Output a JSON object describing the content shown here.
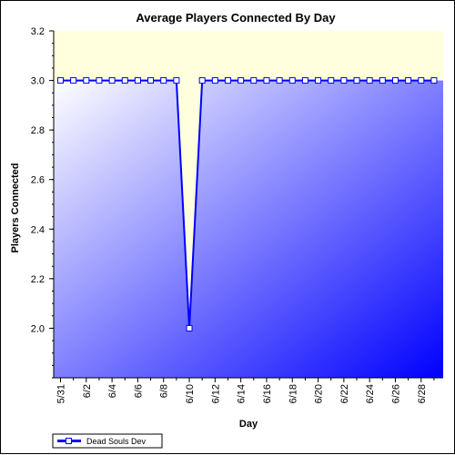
{
  "chart_data": {
    "type": "line",
    "title": "Average Players Connected By Day",
    "xlabel": "Day",
    "ylabel": "Players Connected",
    "ylim": [
      1.8,
      3.2
    ],
    "y_ticks": [
      "2.0",
      "2.2",
      "2.4",
      "2.6",
      "2.8",
      "3.0",
      "3.2"
    ],
    "x_tick_labels": [
      "5/31",
      "6/2",
      "6/4",
      "6/6",
      "6/8",
      "6/10",
      "6/12",
      "6/14",
      "6/16",
      "6/18",
      "6/20",
      "6/22",
      "6/24",
      "6/26",
      "6/28"
    ],
    "categories": [
      "5/31",
      "6/1",
      "6/2",
      "6/3",
      "6/4",
      "6/5",
      "6/6",
      "6/7",
      "6/8",
      "6/9",
      "6/10",
      "6/11",
      "6/12",
      "6/13",
      "6/14",
      "6/15",
      "6/16",
      "6/17",
      "6/18",
      "6/19",
      "6/20",
      "6/21",
      "6/22",
      "6/23",
      "6/24",
      "6/25",
      "6/26",
      "6/27",
      "6/28",
      "6/29"
    ],
    "series": [
      {
        "name": "Dead Souls Dev",
        "color": "#0000ff",
        "values": [
          3,
          3,
          3,
          3,
          3,
          3,
          3,
          3,
          3,
          3,
          2,
          3,
          3,
          3,
          3,
          3,
          3,
          3,
          3,
          3,
          3,
          3,
          3,
          3,
          3,
          3,
          3,
          3,
          3,
          3
        ]
      }
    ],
    "grid": false,
    "legend_position": "bottom-left",
    "background": {
      "top_color": "#ffffdd",
      "gradient_from": "#ffffff",
      "gradient_to": "#0000ff"
    }
  }
}
